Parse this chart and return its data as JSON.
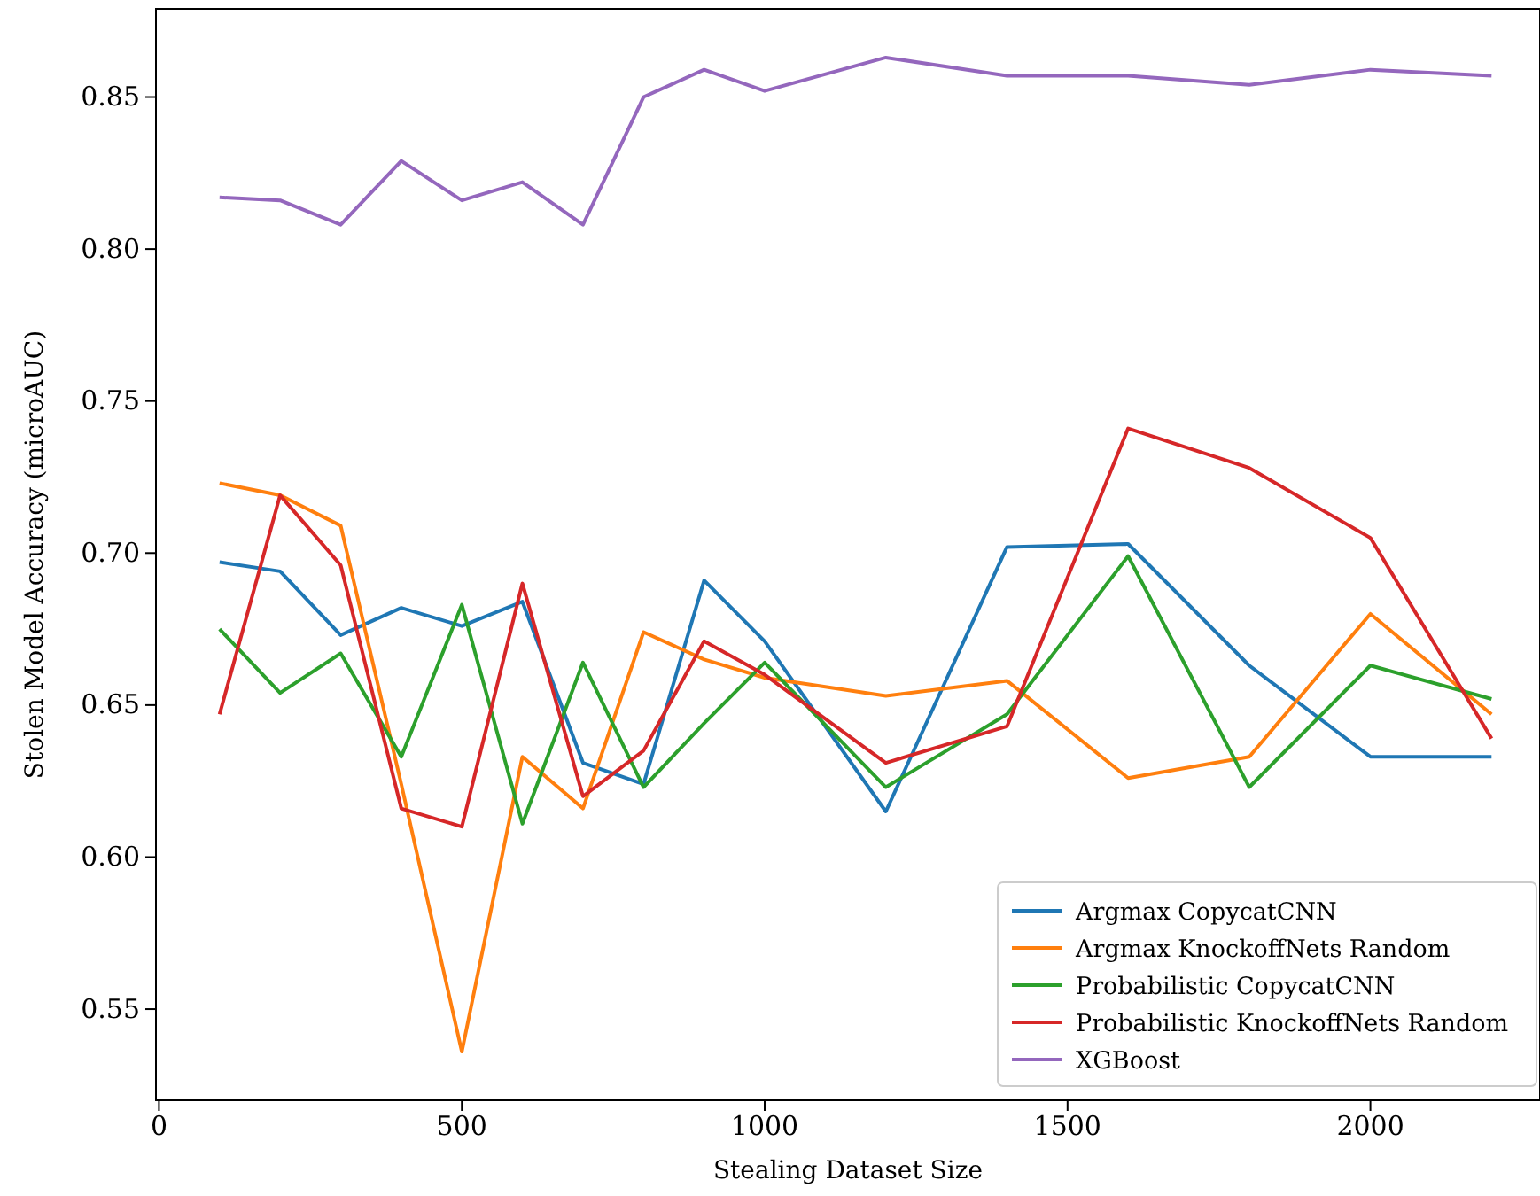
{
  "chart_data": {
    "type": "line",
    "xlabel": "Stealing Dataset Size",
    "ylabel": "Stolen Model Accuracy (microAUC)",
    "x": [
      100,
      200,
      300,
      400,
      500,
      600,
      700,
      800,
      900,
      1000,
      1200,
      1400,
      1600,
      1800,
      2000,
      2200
    ],
    "series": [
      {
        "name": "Argmax CopycatCNN",
        "color": "#1f77b4",
        "values": [
          0.697,
          0.694,
          0.673,
          0.682,
          0.676,
          0.684,
          0.631,
          0.624,
          0.691,
          0.671,
          0.615,
          0.702,
          0.703,
          0.663,
          0.633,
          0.633
        ]
      },
      {
        "name": "Argmax KnockoffNets Random",
        "color": "#ff7f0e",
        "values": [
          0.723,
          0.719,
          0.709,
          0.624,
          0.536,
          0.633,
          0.616,
          0.674,
          0.665,
          0.659,
          0.653,
          0.658,
          0.626,
          0.633,
          0.68,
          0.647
        ]
      },
      {
        "name": "Probabilistic CopycatCNN",
        "color": "#2ca02c",
        "values": [
          0.675,
          0.654,
          0.667,
          0.633,
          0.683,
          0.611,
          0.664,
          0.623,
          0.644,
          0.664,
          0.623,
          0.647,
          0.699,
          0.623,
          0.663,
          0.652
        ]
      },
      {
        "name": "Probabilistic KnockoffNets Random",
        "color": "#d62728",
        "values": [
          0.647,
          0.719,
          0.696,
          0.616,
          0.61,
          0.69,
          0.62,
          0.635,
          0.671,
          0.66,
          0.631,
          0.643,
          0.741,
          0.728,
          0.705,
          0.639
        ]
      },
      {
        "name": "XGBoost",
        "color": "#9467bd",
        "values": [
          0.817,
          0.816,
          0.808,
          0.829,
          0.816,
          0.822,
          0.808,
          0.85,
          0.859,
          0.852,
          0.863,
          0.857,
          0.857,
          0.854,
          0.859,
          0.857
        ]
      }
    ],
    "xlim": [
      -5,
      2280
    ],
    "ylim": [
      0.52,
      0.879
    ],
    "xticks": [
      0,
      500,
      1000,
      1500,
      2000
    ],
    "yticks": [
      {
        "value": 0.55,
        "label": "0.55"
      },
      {
        "value": 0.6,
        "label": "0.60"
      },
      {
        "value": 0.65,
        "label": "0.65"
      },
      {
        "value": 0.7,
        "label": "0.70"
      },
      {
        "value": 0.75,
        "label": "0.75"
      },
      {
        "value": 0.8,
        "label": "0.80"
      },
      {
        "value": 0.85,
        "label": "0.85"
      }
    ],
    "legend": "bottom right",
    "grid": false,
    "marker": "none",
    "line_style": "solid"
  }
}
